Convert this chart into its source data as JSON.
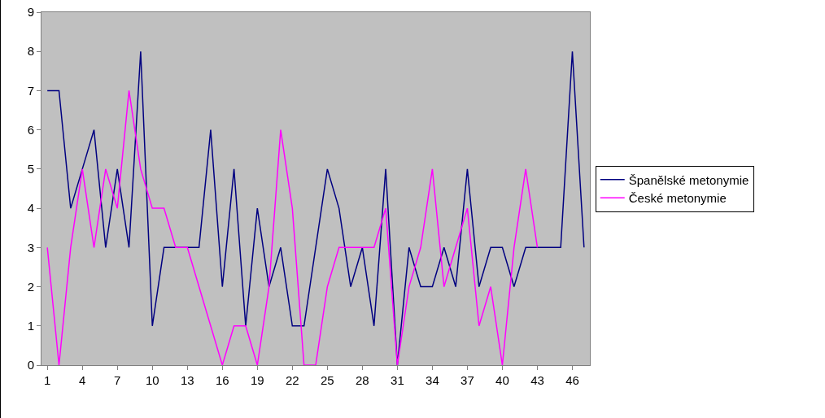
{
  "chart_data": {
    "type": "line",
    "categories": [
      "1",
      null,
      null,
      "4",
      null,
      null,
      "7",
      null,
      null,
      "10",
      null,
      null,
      "13",
      null,
      null,
      "16",
      null,
      null,
      "19",
      null,
      null,
      "22",
      null,
      null,
      "25",
      null,
      null,
      "28",
      null,
      null,
      "31",
      null,
      null,
      "34",
      null,
      null,
      "37",
      null,
      null,
      "40",
      null,
      null,
      "43",
      null,
      null,
      "46",
      null
    ],
    "series": [
      {
        "name": "Španělské metonymie",
        "color": "#000080",
        "values": [
          7,
          7,
          4,
          5,
          6,
          3,
          5,
          3,
          8,
          1,
          3,
          3,
          3,
          3,
          6,
          2,
          5,
          1,
          4,
          2,
          3,
          1,
          1,
          3,
          5,
          4,
          2,
          3,
          1,
          5,
          0,
          3,
          2,
          2,
          3,
          2,
          5,
          2,
          3,
          3,
          2,
          3,
          3,
          3,
          3,
          8,
          3
        ]
      },
      {
        "name": "České metonymie",
        "color": "#ff00ff",
        "values": [
          3,
          0,
          3,
          5,
          3,
          5,
          4,
          7,
          5,
          4,
          4,
          3,
          3,
          2,
          1,
          0,
          1,
          1,
          0,
          2,
          6,
          4,
          0,
          0,
          2,
          3,
          3,
          3,
          3,
          4,
          0,
          2,
          3,
          5,
          2,
          3,
          4,
          1,
          2,
          0,
          3,
          5,
          3,
          null,
          null,
          null,
          null
        ]
      }
    ],
    "ylim": [
      0,
      9
    ],
    "yticks": [
      0,
      1,
      2,
      3,
      4,
      5,
      6,
      7,
      8,
      9
    ],
    "grid": false,
    "legend": "right",
    "marker": "none",
    "line_style": "solid"
  }
}
